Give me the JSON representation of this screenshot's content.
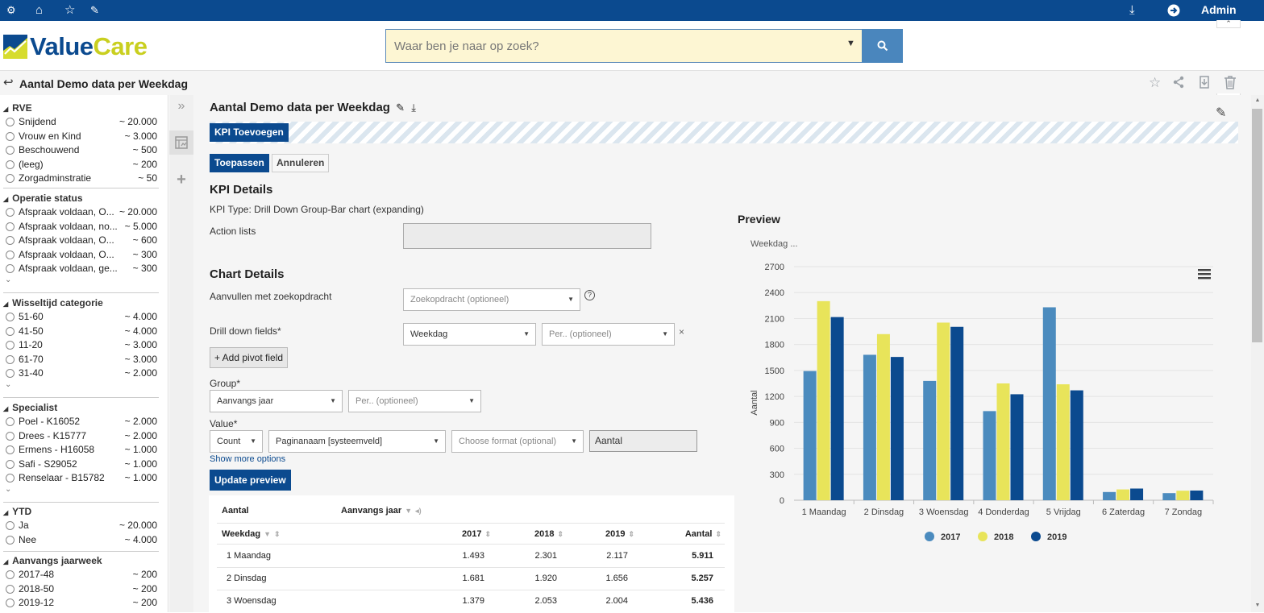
{
  "topbar": {
    "user": "Admin"
  },
  "header": {
    "logo_value": "Value",
    "logo_care": "Care",
    "search_placeholder": "Waar ben je naar op zoek?"
  },
  "page": {
    "title": "Aantal Demo data per Weekdag"
  },
  "filters": [
    {
      "title": "RVE",
      "items": [
        {
          "label": "Snijdend",
          "count": "~ 20.000"
        },
        {
          "label": "Vrouw en Kind",
          "count": "~ 3.000"
        },
        {
          "label": "Beschouwend",
          "count": "~ 500"
        },
        {
          "label": "(leeg)",
          "count": "~ 200"
        },
        {
          "label": "Zorgadminstratie",
          "count": "~ 50"
        }
      ],
      "more": false
    },
    {
      "title": "Operatie status",
      "items": [
        {
          "label": "Afspraak voldaan, O...",
          "count": "~ 20.000"
        },
        {
          "label": "Afspraak voldaan, no...",
          "count": "~ 5.000"
        },
        {
          "label": "Afspraak voldaan, O...",
          "count": "~ 600"
        },
        {
          "label": "Afspraak voldaan, O...",
          "count": "~ 300"
        },
        {
          "label": "Afspraak voldaan, ge...",
          "count": "~ 300"
        }
      ],
      "more": true
    },
    {
      "title": "Wisseltijd categorie",
      "items": [
        {
          "label": "51-60",
          "count": "~ 4.000"
        },
        {
          "label": "41-50",
          "count": "~ 4.000"
        },
        {
          "label": "11-20",
          "count": "~ 3.000"
        },
        {
          "label": "61-70",
          "count": "~ 3.000"
        },
        {
          "label": "31-40",
          "count": "~ 2.000"
        }
      ],
      "more": true
    },
    {
      "title": "Specialist",
      "items": [
        {
          "label": "Poel - K16052",
          "count": "~ 2.000"
        },
        {
          "label": "Drees - K15777",
          "count": "~ 2.000"
        },
        {
          "label": "Ermens - H16058",
          "count": "~ 1.000"
        },
        {
          "label": "Safi - S29052",
          "count": "~ 1.000"
        },
        {
          "label": "Renselaar - B15782",
          "count": "~ 1.000"
        }
      ],
      "more": true
    },
    {
      "title": "YTD",
      "items": [
        {
          "label": "Ja",
          "count": "~ 20.000"
        },
        {
          "label": "Nee",
          "count": "~ 4.000"
        }
      ],
      "more": false
    },
    {
      "title": "Aanvangs jaarweek",
      "items": [
        {
          "label": "2017-48",
          "count": "~ 200"
        },
        {
          "label": "2018-50",
          "count": "~ 200"
        },
        {
          "label": "2019-12",
          "count": "~ 200"
        }
      ],
      "more": false
    }
  ],
  "editor": {
    "title": "Aantal Demo data per Weekdag",
    "kpi_add": "KPI Toevoegen",
    "apply": "Toepassen",
    "cancel": "Annuleren",
    "kpi_details": "KPI Details",
    "kpi_type": "KPI Type: Drill Down Group-Bar chart (expanding)",
    "action_lists": "Action lists",
    "chart_details": "Chart Details",
    "aanvullen": "Aanvullen met zoekopdracht",
    "zoekopdracht": "Zoekopdracht (optioneel)",
    "drill_fields": "Drill down fields*",
    "drill_value": "Weekdag",
    "per_opt": "Per.. (optioneel)",
    "add_pivot": "+ Add pivot field",
    "group": "Group*",
    "group_value": "Aanvangs jaar",
    "value": "Value*",
    "agg": "Count",
    "value_field": "Paginanaam [systeemveld]",
    "format": "Choose format (optional)",
    "value_name": "Aantal",
    "show_more": "Show more options",
    "update": "Update preview"
  },
  "table": {
    "top_left": "Aantal",
    "pivot_label": "Aanvangs jaar",
    "headers": [
      "Weekdag",
      "2017",
      "2018",
      "2019",
      "Aantal"
    ],
    "rows": [
      [
        "1 Maandag",
        "1.493",
        "2.301",
        "2.117",
        "5.911"
      ],
      [
        "2 Dinsdag",
        "1.681",
        "1.920",
        "1.656",
        "5.257"
      ],
      [
        "3 Woensdag",
        "1.379",
        "2.053",
        "2.004",
        "5.436"
      ]
    ]
  },
  "chart_data": {
    "type": "bar",
    "title": "Preview",
    "subtitle": "Weekdag ...",
    "xlabel": "",
    "ylabel": "Aantal",
    "categories": [
      "1 Maandag",
      "2 Dinsdag",
      "3 Woensdag",
      "4 Donderdag",
      "5 Vrijdag",
      "6 Zaterdag",
      "7 Zondag"
    ],
    "series": [
      {
        "name": "2017",
        "color": "#4b8bbe",
        "values": [
          1493,
          1681,
          1379,
          1030,
          2230,
          95,
          82
        ]
      },
      {
        "name": "2018",
        "color": "#e8e45a",
        "values": [
          2301,
          1920,
          2053,
          1350,
          1340,
          125,
          110
        ]
      },
      {
        "name": "2019",
        "color": "#0b4a8f",
        "values": [
          2117,
          1656,
          2004,
          1225,
          1270,
          135,
          112
        ]
      }
    ],
    "yticks": [
      0,
      300,
      600,
      900,
      1200,
      1500,
      1800,
      2100,
      2400,
      2700
    ],
    "ylim": [
      0,
      2700
    ],
    "grid": true,
    "legend": "bottom"
  }
}
